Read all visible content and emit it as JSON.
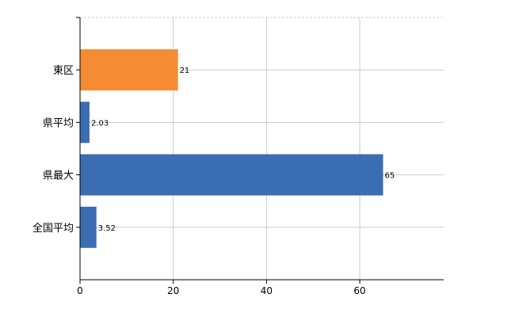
{
  "chart_data": {
    "type": "bar",
    "orientation": "horizontal",
    "categories": [
      "東区",
      "県平均",
      "県最大",
      "全国平均"
    ],
    "values": [
      21,
      2.03,
      65,
      3.52
    ],
    "data_labels": [
      "21",
      "2.03",
      "65",
      "3.52"
    ],
    "bar_colors": [
      "#f58b33",
      "#3b6db3",
      "#3b6db3",
      "#3b6db3"
    ],
    "xlim": [
      0,
      78
    ],
    "xticks": [
      0,
      20,
      40,
      60
    ],
    "xtick_labels": [
      "0",
      "20",
      "40",
      "60"
    ],
    "grid": true,
    "title": "",
    "xlabel": "",
    "ylabel": ""
  }
}
